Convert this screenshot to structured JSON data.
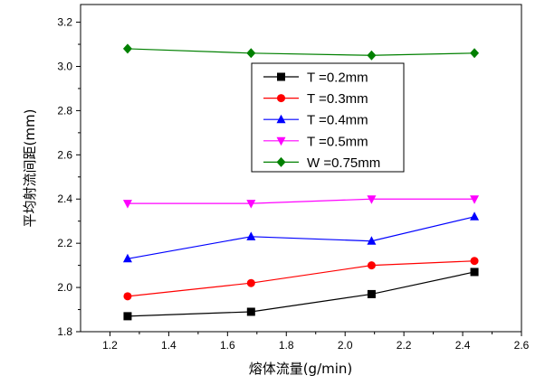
{
  "chart_data": {
    "type": "line",
    "title": "",
    "xlabel": "熔体流量(g/min)",
    "ylabel": "平均射流间距(mm)",
    "xlim": [
      1.1,
      2.6
    ],
    "ylim": [
      1.8,
      3.28
    ],
    "xticks": [
      1.2,
      1.4,
      1.6,
      1.8,
      2.0,
      2.2,
      2.4,
      2.6
    ],
    "xtick_labels": [
      "1.2",
      "1.4",
      "1.6",
      "1.8",
      "2.0",
      "2.2",
      "2.4",
      "2.6"
    ],
    "yticks": [
      1.8,
      2.0,
      2.2,
      2.4,
      2.6,
      2.8,
      3.0,
      3.2
    ],
    "ytick_labels": [
      "1.8",
      "2.0",
      "2.2",
      "2.4",
      "2.6",
      "2.8",
      "3.0",
      "3.2"
    ],
    "grid": false,
    "legend_position": "center-upper",
    "x": [
      1.26,
      1.68,
      2.09,
      2.44
    ],
    "series": [
      {
        "name": "T =0.2mm",
        "values": [
          1.87,
          1.89,
          1.97,
          2.07
        ],
        "color": "#000000",
        "marker": "square"
      },
      {
        "name": "T =0.3mm",
        "values": [
          1.96,
          2.02,
          2.1,
          2.12
        ],
        "color": "#ff0000",
        "marker": "circle"
      },
      {
        "name": "T =0.4mm",
        "values": [
          2.13,
          2.23,
          2.21,
          2.32
        ],
        "color": "#0000ff",
        "marker": "triangle-up"
      },
      {
        "name": "T =0.5mm",
        "values": [
          2.38,
          2.38,
          2.4,
          2.4
        ],
        "color": "#ff00ff",
        "marker": "triangle-down"
      },
      {
        "name": "W =0.75mm",
        "values": [
          3.08,
          3.06,
          3.05,
          3.06
        ],
        "color": "#008000",
        "marker": "diamond"
      }
    ]
  }
}
